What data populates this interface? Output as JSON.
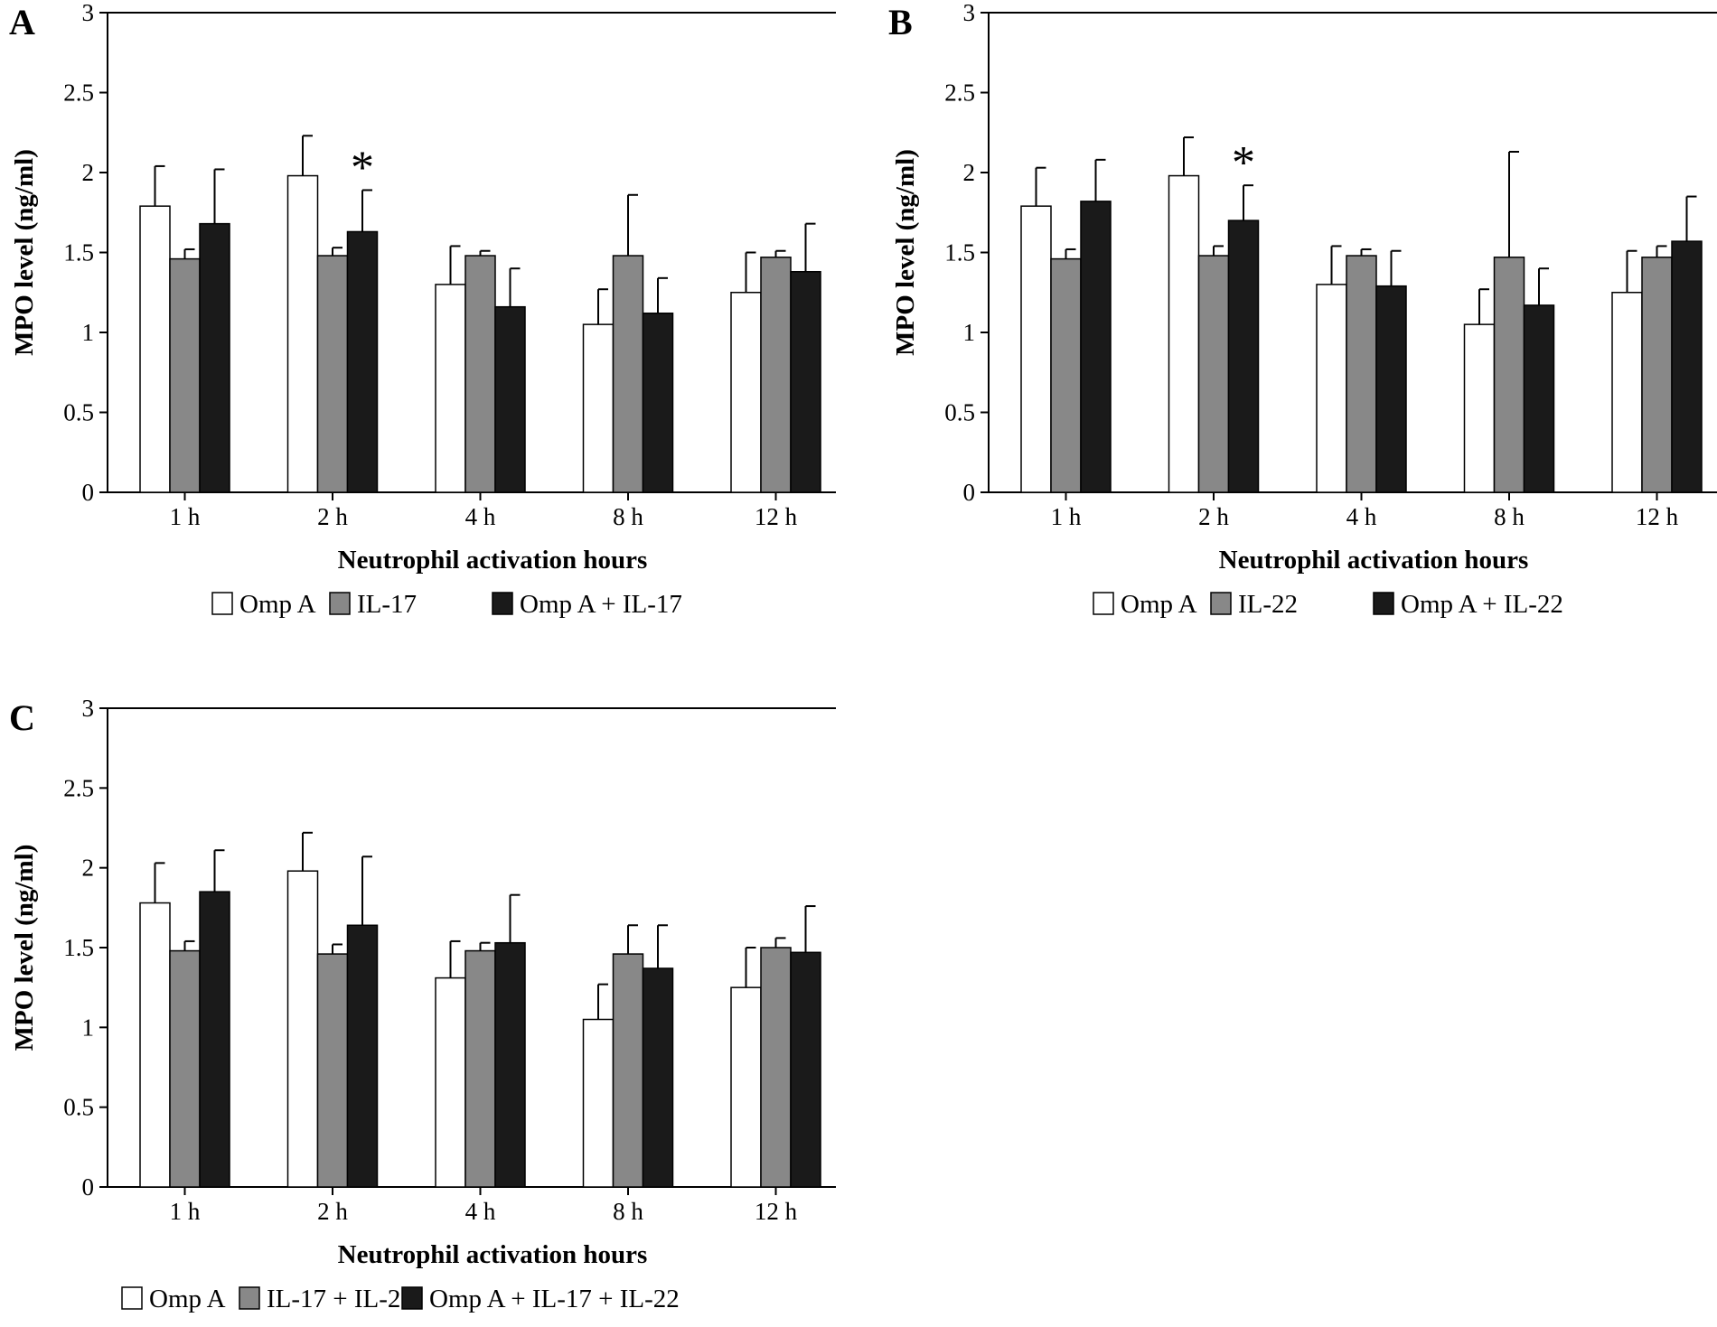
{
  "chart_data": [
    {
      "panel": "A",
      "type": "bar",
      "categories": [
        "1 h",
        "2 h",
        "4 h",
        "8 h",
        "12 h"
      ],
      "ylabel": "MPO level (ng/ml)",
      "xlabel": "Neutrophil activation hours",
      "yticks": [
        "0",
        "0.5",
        "1",
        "1.5",
        "2",
        "2.5",
        "3"
      ],
      "ylim": [
        0,
        3
      ],
      "legend_position": "bottom",
      "series": [
        {
          "name": "Omp A",
          "color": "#ffffff",
          "values": [
            1.79,
            1.98,
            1.3,
            1.05,
            1.25
          ],
          "errors": [
            0.25,
            0.25,
            0.24,
            0.22,
            0.25
          ]
        },
        {
          "name": "IL-17",
          "color": "#888888",
          "values": [
            1.46,
            1.48,
            1.48,
            1.48,
            1.47
          ],
          "errors": [
            0.06,
            0.05,
            0.03,
            0.38,
            0.04
          ]
        },
        {
          "name": "Omp A + IL-17",
          "color": "#1a1a1a",
          "values": [
            1.68,
            1.63,
            1.16,
            1.12,
            1.38
          ],
          "errors": [
            0.34,
            0.26,
            0.24,
            0.22,
            0.3
          ]
        }
      ],
      "annotations": [
        {
          "text": "*",
          "category": "2 h"
        }
      ]
    },
    {
      "panel": "B",
      "type": "bar",
      "categories": [
        "1 h",
        "2 h",
        "4 h",
        "8 h",
        "12 h"
      ],
      "ylabel": "MPO level (ng/ml)",
      "xlabel": "Neutrophil activation hours",
      "yticks": [
        "0",
        "0.5",
        "1",
        "1.5",
        "2",
        "2.5",
        "3"
      ],
      "ylim": [
        0,
        3
      ],
      "legend_position": "bottom",
      "series": [
        {
          "name": "Omp A",
          "color": "#ffffff",
          "values": [
            1.79,
            1.98,
            1.3,
            1.05,
            1.25
          ],
          "errors": [
            0.24,
            0.24,
            0.24,
            0.22,
            0.26
          ]
        },
        {
          "name": "IL-22",
          "color": "#888888",
          "values": [
            1.46,
            1.48,
            1.48,
            1.47,
            1.47
          ],
          "errors": [
            0.06,
            0.06,
            0.04,
            0.66,
            0.07
          ]
        },
        {
          "name": "Omp A + IL-22",
          "color": "#1a1a1a",
          "values": [
            1.82,
            1.7,
            1.29,
            1.17,
            1.57
          ],
          "errors": [
            0.26,
            0.22,
            0.22,
            0.23,
            0.28
          ]
        }
      ],
      "annotations": [
        {
          "text": "*",
          "category": "2 h"
        }
      ]
    },
    {
      "panel": "C",
      "type": "bar",
      "categories": [
        "1 h",
        "2 h",
        "4 h",
        "8 h",
        "12 h"
      ],
      "ylabel": "MPO level (ng/ml)",
      "xlabel": "Neutrophil activation hours",
      "yticks": [
        "0",
        "0.5",
        "1",
        "1.5",
        "2",
        "2.5",
        "3"
      ],
      "ylim": [
        0,
        3
      ],
      "legend_position": "bottom",
      "series": [
        {
          "name": "Omp A",
          "color": "#ffffff",
          "values": [
            1.78,
            1.98,
            1.31,
            1.05,
            1.25
          ],
          "errors": [
            0.25,
            0.24,
            0.23,
            0.22,
            0.25
          ]
        },
        {
          "name": "IL-17 + IL-22",
          "color": "#888888",
          "values": [
            1.48,
            1.46,
            1.48,
            1.46,
            1.5
          ],
          "errors": [
            0.06,
            0.06,
            0.05,
            0.18,
            0.06
          ]
        },
        {
          "name": "Omp A + IL-17 + IL-22",
          "color": "#1a1a1a",
          "values": [
            1.85,
            1.64,
            1.53,
            1.37,
            1.47
          ],
          "errors": [
            0.26,
            0.43,
            0.3,
            0.27,
            0.29
          ]
        }
      ],
      "annotations": []
    }
  ]
}
